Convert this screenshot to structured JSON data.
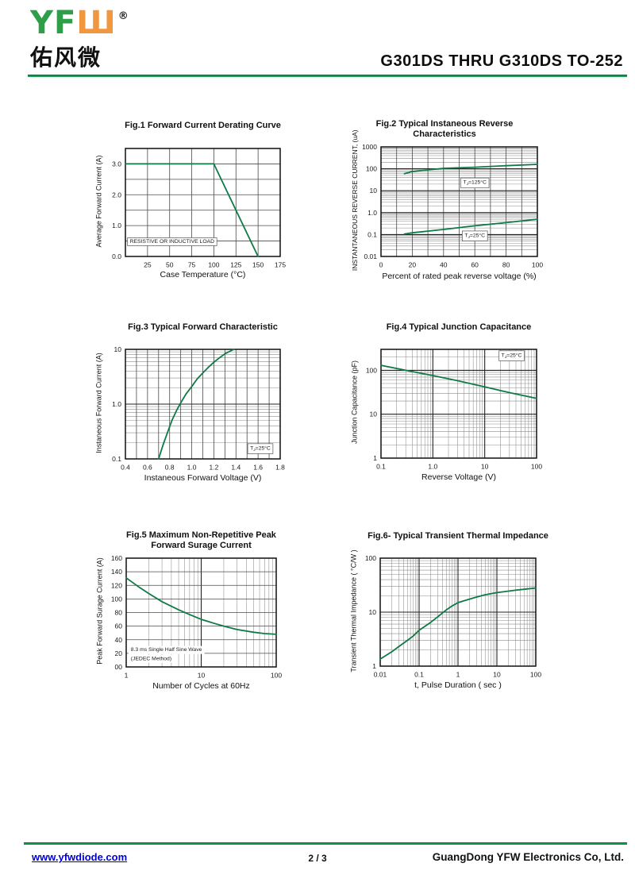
{
  "header": {
    "logo": {
      "yf": "YF",
      "w": "Ш",
      "registered": "®",
      "chinese": "佑风微"
    },
    "title": "G301DS THRU G310DS  TO-252"
  },
  "footer": {
    "website": "www.yfwdiode.com",
    "page": "2 / 3",
    "company": "GuangDong YFW Electronics Co, Ltd."
  },
  "colors": {
    "brand_green": "#2f9e49",
    "brand_orange": "#f0973f",
    "rule_green": "#18a052",
    "curve_green": "#0e7a45",
    "link_blue": "#0000cc"
  },
  "chart_data": [
    {
      "type": "line",
      "title": "Fig.1  Forward Current Derating Curve",
      "xlabel": "Case Temperature (°C)",
      "ylabel": "Average Forward Current (A)",
      "x_axis": {
        "scale": "linear",
        "min": 0,
        "max": 175,
        "grid_step": 25,
        "ticks": [
          [
            25,
            "25"
          ],
          [
            50,
            "50"
          ],
          [
            75,
            "75"
          ],
          [
            100,
            "100"
          ],
          [
            125,
            "125"
          ],
          [
            150,
            "150"
          ],
          [
            175,
            "175"
          ]
        ]
      },
      "y_axis": {
        "scale": "linear",
        "min": 0,
        "max": 3.5,
        "grid_step": 0.5,
        "ticks": [
          [
            0,
            "0.0"
          ],
          [
            1,
            "1.0"
          ],
          [
            2,
            "2.0"
          ],
          [
            3,
            "3.0"
          ]
        ]
      },
      "series": [
        {
          "name": "derating",
          "points": [
            [
              0,
              3
            ],
            [
              100,
              3
            ],
            [
              150,
              0
            ]
          ]
        }
      ],
      "annotations": [
        {
          "text": "RESISTIVE OR INDUCTIVE LOAD",
          "x": 5,
          "y": 0.5,
          "anchor": "start",
          "box": "border"
        }
      ]
    },
    {
      "type": "line",
      "title": "Fig.2  Typical Instaneous Reverse\nCharacteristics",
      "xlabel": "Percent of rated peak reverse voltage  (%)",
      "ylabel": "INSTANTANEOUS REVERSE CURRENT, (uA)",
      "x_axis": {
        "scale": "linear",
        "min": 0,
        "max": 100,
        "grid_step": 10,
        "ticks": [
          [
            0,
            "0"
          ],
          [
            20,
            "20"
          ],
          [
            40,
            "40"
          ],
          [
            60,
            "60"
          ],
          [
            80,
            "80"
          ],
          [
            100,
            "100"
          ]
        ]
      },
      "y_axis": {
        "scale": "log",
        "min": 0.01,
        "max": 1000,
        "ticks": [
          [
            1000,
            "1000"
          ],
          [
            100,
            "100"
          ],
          [
            10,
            "10"
          ],
          [
            1,
            "1.0"
          ],
          [
            0.1,
            "0.1"
          ],
          [
            0.01,
            "0.01"
          ]
        ]
      },
      "series": [
        {
          "name": "TJ=125°C",
          "points": [
            [
              15,
              60
            ],
            [
              20,
              75
            ],
            [
              40,
              105
            ],
            [
              60,
              118
            ],
            [
              80,
              138
            ],
            [
              100,
              160
            ]
          ]
        },
        {
          "name": "TJ=25°C",
          "points": [
            [
              15,
              0.105
            ],
            [
              20,
              0.12
            ],
            [
              40,
              0.17
            ],
            [
              60,
              0.25
            ],
            [
              80,
              0.35
            ],
            [
              100,
              0.5
            ]
          ]
        }
      ],
      "annotations": [
        {
          "text": "TJ=125°C",
          "x": 60,
          "y": 25,
          "anchor": "middle",
          "box": "border"
        },
        {
          "text": "TJ=25°C",
          "x": 60,
          "y": 0.095,
          "anchor": "middle",
          "box": "border"
        }
      ]
    },
    {
      "type": "line",
      "title": "Fig.3  Typical Forward Characteristic",
      "xlabel": "Instaneous Forward Voltage (V)",
      "ylabel": "Instaneous Forward Current  (A)",
      "x_axis": {
        "scale": "linear",
        "min": 0.4,
        "max": 1.8,
        "grid_step": 0.1,
        "ticks": [
          [
            0.4,
            "0.4"
          ],
          [
            0.6,
            "0.6"
          ],
          [
            0.8,
            "0.8"
          ],
          [
            1.0,
            "1.0"
          ],
          [
            1.2,
            "1.2"
          ],
          [
            1.4,
            "1.4"
          ],
          [
            1.6,
            "1.6"
          ],
          [
            1.8,
            "1.8"
          ]
        ]
      },
      "y_axis": {
        "scale": "log",
        "min": 0.1,
        "max": 10,
        "ticks": [
          [
            10,
            "10"
          ],
          [
            1,
            "1.0"
          ],
          [
            0.1,
            "0.1"
          ]
        ]
      },
      "series": [
        {
          "name": "forward",
          "points": [
            [
              0.7,
              0.1
            ],
            [
              0.74,
              0.18
            ],
            [
              0.78,
              0.3
            ],
            [
              0.82,
              0.5
            ],
            [
              0.86,
              0.75
            ],
            [
              0.9,
              1.05
            ],
            [
              0.95,
              1.55
            ],
            [
              1.0,
              2.1
            ],
            [
              1.05,
              2.9
            ],
            [
              1.1,
              3.7
            ],
            [
              1.15,
              4.7
            ],
            [
              1.2,
              5.8
            ],
            [
              1.25,
              7.0
            ],
            [
              1.3,
              8.3
            ],
            [
              1.38,
              10
            ]
          ]
        }
      ],
      "annotations": [
        {
          "text": "TJ=25°C",
          "x": 1.62,
          "y": 0.16,
          "anchor": "middle",
          "box": "border"
        }
      ]
    },
    {
      "type": "line",
      "title": "Fig.4  Typical Junction Capacitance",
      "xlabel": "Reverse  Voltage (V)",
      "ylabel": "Junction Capacitance (pF)",
      "x_axis": {
        "scale": "log",
        "min": 0.1,
        "max": 100,
        "ticks": [
          [
            0.1,
            "0.1"
          ],
          [
            1,
            "1.0"
          ],
          [
            10,
            "10"
          ],
          [
            100,
            "100"
          ]
        ]
      },
      "y_axis": {
        "scale": "log",
        "min": 1,
        "max": 300,
        "ticks": [
          [
            100,
            "100"
          ],
          [
            10,
            "10"
          ],
          [
            1,
            "1"
          ]
        ]
      },
      "series": [
        {
          "name": "junction-capacitance",
          "points": [
            [
              0.1,
              130
            ],
            [
              0.3,
              100
            ],
            [
              1,
              76
            ],
            [
              3,
              58
            ],
            [
              10,
              42
            ],
            [
              30,
              31
            ],
            [
              100,
              23
            ]
          ]
        }
      ],
      "annotations": [
        {
          "text": "TJ=25°C",
          "x": 33,
          "y": 225,
          "anchor": "middle",
          "box": "border"
        }
      ]
    },
    {
      "type": "line",
      "title": "Fig.5  Maximum Non-Repetitive Peak\nForward Surage Current",
      "xlabel": "Number of Cycles at 60Hz",
      "ylabel": "Peak Forward Surage Current (A)",
      "x_axis": {
        "scale": "log",
        "min": 1,
        "max": 100,
        "ticks": [
          [
            1,
            "1"
          ],
          [
            10,
            "10"
          ],
          [
            100,
            "100"
          ]
        ]
      },
      "y_axis": {
        "scale": "linear",
        "min": 0,
        "max": 160,
        "grid_step": 20,
        "ticks": [
          [
            160,
            "160"
          ],
          [
            140,
            "140"
          ],
          [
            120,
            "120"
          ],
          [
            100,
            "100"
          ],
          [
            80,
            "80"
          ],
          [
            60,
            "60"
          ],
          [
            40,
            "40"
          ],
          [
            20,
            "20"
          ],
          [
            0,
            "00"
          ]
        ]
      },
      "series": [
        {
          "name": "surge",
          "points": [
            [
              1,
              131
            ],
            [
              1.5,
              117
            ],
            [
              2,
              108
            ],
            [
              3,
              96
            ],
            [
              5,
              84
            ],
            [
              7,
              77
            ],
            [
              10,
              70
            ],
            [
              15,
              64
            ],
            [
              20,
              60
            ],
            [
              30,
              55
            ],
            [
              50,
              51
            ],
            [
              70,
              49
            ],
            [
              100,
              48
            ]
          ]
        }
      ],
      "annotations": [
        {
          "text": "8.3 ms Single Half Sine Wave",
          "x": 1.15,
          "y": 26,
          "anchor": "start",
          "box": "fill"
        },
        {
          "text": "(JEDEC Method)",
          "x": 1.15,
          "y": 13,
          "anchor": "start",
          "box": "fill"
        }
      ]
    },
    {
      "type": "line",
      "title": "Fig.6- Typical Transient Thermal Impedance",
      "xlabel": "t, Pulse Duration ( sec )",
      "ylabel": "Transient Thermal Impedance ( °C/W )",
      "x_axis": {
        "scale": "log",
        "min": 0.01,
        "max": 100,
        "ticks": [
          [
            0.01,
            "0.01"
          ],
          [
            0.1,
            "0.1"
          ],
          [
            1,
            "1"
          ],
          [
            10,
            "10"
          ],
          [
            100,
            "100"
          ]
        ]
      },
      "y_axis": {
        "scale": "log",
        "min": 1,
        "max": 100,
        "ticks": [
          [
            100,
            "100"
          ],
          [
            10,
            "10"
          ],
          [
            1,
            "1"
          ]
        ]
      },
      "series": [
        {
          "name": "thermal-impedance",
          "points": [
            [
              0.01,
              1.35
            ],
            [
              0.02,
              1.85
            ],
            [
              0.03,
              2.3
            ],
            [
              0.05,
              3.0
            ],
            [
              0.07,
              3.6
            ],
            [
              0.1,
              4.6
            ],
            [
              0.2,
              6.5
            ],
            [
              0.3,
              8.2
            ],
            [
              0.5,
              11
            ],
            [
              0.7,
              13
            ],
            [
              1,
              15
            ],
            [
              2,
              17.5
            ],
            [
              3,
              19
            ],
            [
              5,
              21
            ],
            [
              10,
              23
            ],
            [
              20,
              24.5
            ],
            [
              30,
              25.5
            ],
            [
              50,
              26.5
            ],
            [
              100,
              28
            ]
          ]
        }
      ],
      "annotations": []
    }
  ]
}
